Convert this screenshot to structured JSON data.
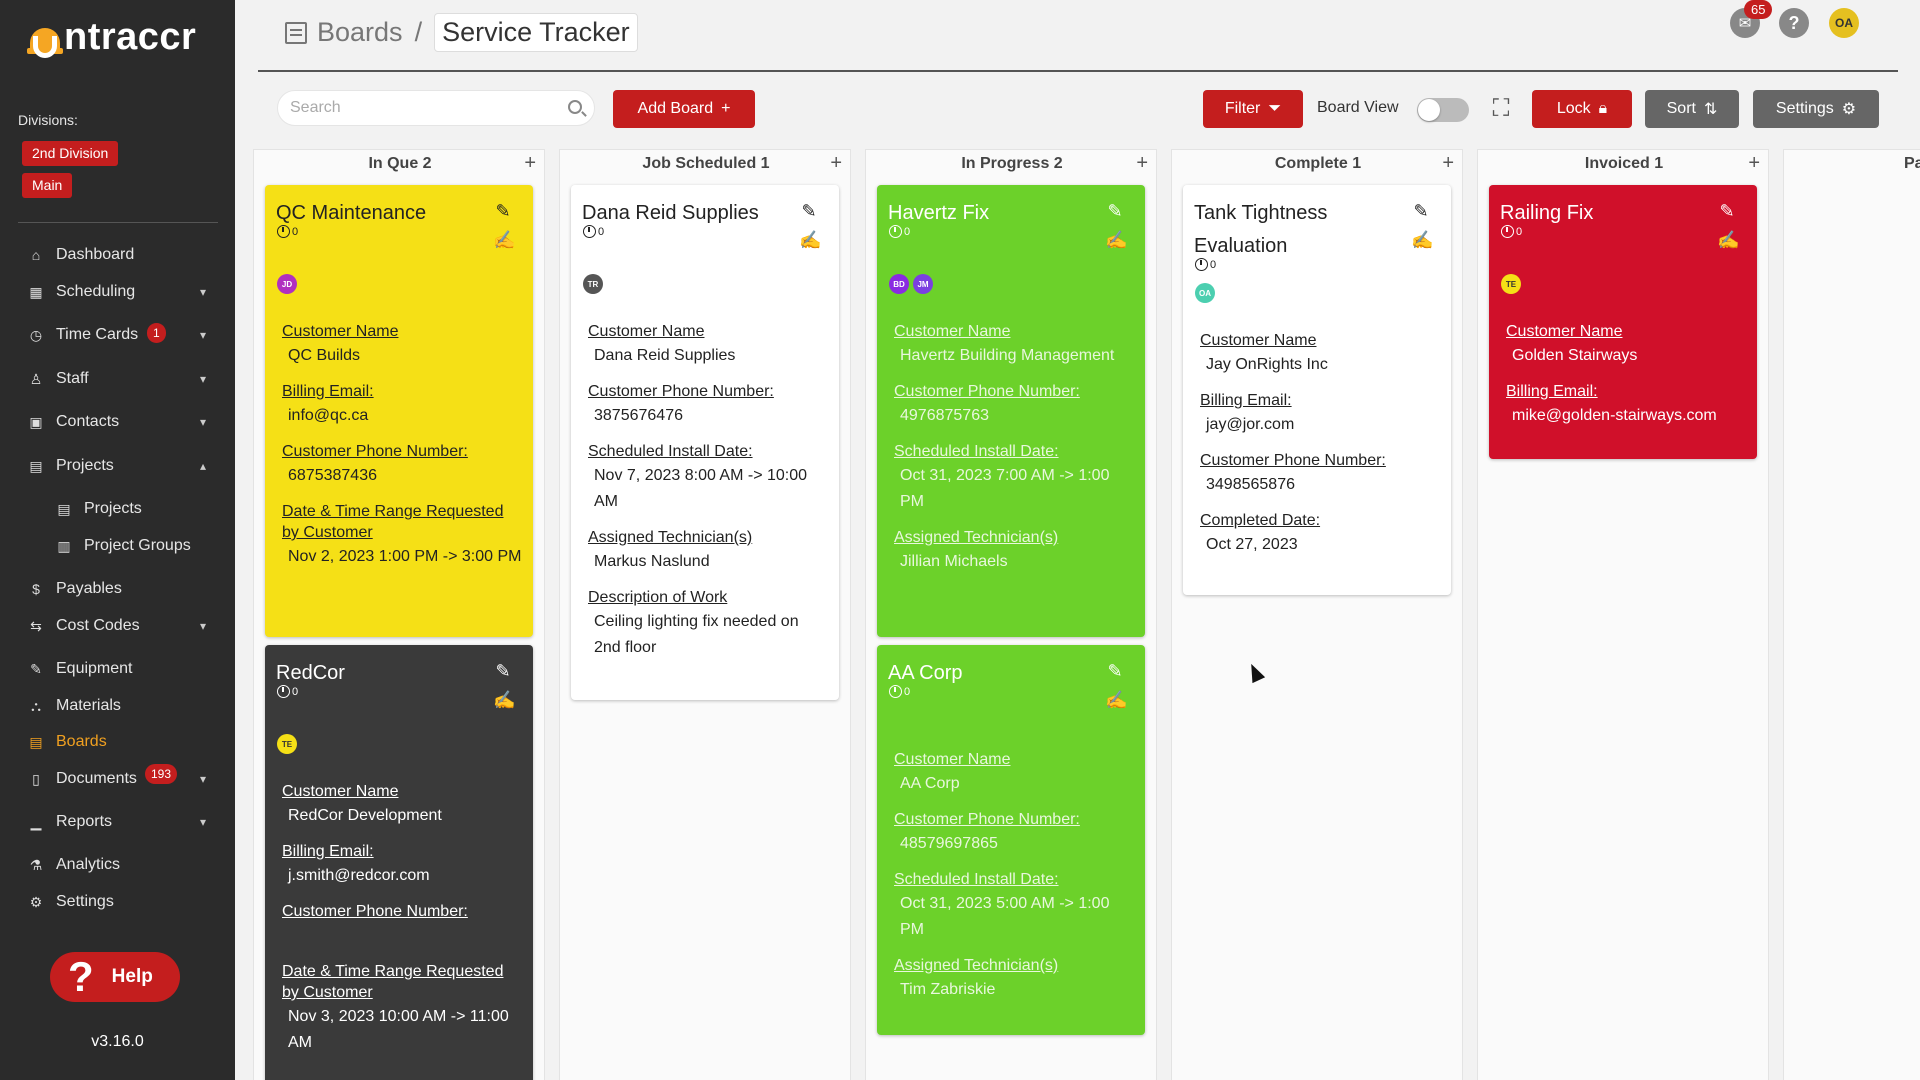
{
  "app": {
    "name": "Untraccr",
    "version": "v3.16.0"
  },
  "sidebar": {
    "divisions_label": "Divisions:",
    "divisions": [
      "2nd Division",
      "Main"
    ],
    "items": [
      {
        "label": "Dashboard",
        "icon": "home-icon"
      },
      {
        "label": "Scheduling",
        "icon": "calendar-icon"
      },
      {
        "label": "Time Cards",
        "icon": "clock-icon",
        "badge": "1"
      },
      {
        "label": "Staff",
        "icon": "user-icon"
      },
      {
        "label": "Contacts",
        "icon": "contact-card-icon"
      },
      {
        "label": "Projects",
        "icon": "projects-icon"
      },
      {
        "label": "Projects",
        "icon": "projects-icon"
      },
      {
        "label": "Project Groups",
        "icon": "project-groups-icon"
      },
      {
        "label": "Payables",
        "icon": "dollar-icon"
      },
      {
        "label": "Cost Codes",
        "icon": "swap-icon"
      },
      {
        "label": "Equipment",
        "icon": "wrench-icon"
      },
      {
        "label": "Materials",
        "icon": "materials-icon"
      },
      {
        "label": "Boards",
        "icon": "boards-icon"
      },
      {
        "label": "Documents",
        "icon": "document-icon",
        "badge": "193"
      },
      {
        "label": "Reports",
        "icon": "bar-chart-icon"
      },
      {
        "label": "Analytics",
        "icon": "flask-icon"
      },
      {
        "label": "Settings",
        "icon": "gear-icon"
      }
    ],
    "help_label": "Help"
  },
  "header": {
    "breadcrumb_root": "Boards",
    "breadcrumb_sep": "/",
    "breadcrumb_current": "Service Tracker",
    "mail_badge": "65",
    "avatar_initials": "OA"
  },
  "toolbar": {
    "search_placeholder": "Search",
    "add_board_label": "Add Board",
    "filter_label": "Filter",
    "board_view_label": "Board View",
    "lock_label": "Lock",
    "sort_label": "Sort",
    "settings_label": "Settings"
  },
  "columns": [
    {
      "title": "In Que 2",
      "cards": [
        {
          "title": "QC Maintenance",
          "time": "0",
          "color": "#f5e016",
          "avatars": [
            "JD"
          ],
          "fields": [
            {
              "label": "Customer Name",
              "value": "QC Builds"
            },
            {
              "label": "Billing Email:",
              "value": "info@qc.ca"
            },
            {
              "label": "Customer Phone Number:",
              "value": "6875387436"
            },
            {
              "label": "Date & Time Range Requested by Customer",
              "value": "Nov 2, 2023 1:00 PM -> 3:00 PM"
            }
          ]
        },
        {
          "title": "RedCor",
          "time": "0",
          "color": "#3a3a3a",
          "avatars": [
            "TE"
          ],
          "fields": [
            {
              "label": "Customer Name",
              "value": "RedCor Development"
            },
            {
              "label": "Billing Email:",
              "value": "j.smith@redcor.com"
            },
            {
              "label": "Customer Phone Number:",
              "value": ""
            },
            {
              "label": "Date & Time Range Requested by Customer",
              "value": "Nov 3, 2023 10:00 AM -> 11:00 AM"
            }
          ]
        }
      ]
    },
    {
      "title": "Job Scheduled 1",
      "cards": [
        {
          "title": "Dana Reid Supplies",
          "time": "0",
          "color": "#ffffff",
          "avatars": [
            "TR"
          ],
          "fields": [
            {
              "label": "Customer Name",
              "value": "Dana Reid Supplies"
            },
            {
              "label": "Customer Phone Number:",
              "value": "3875676476"
            },
            {
              "label": "Scheduled Install Date:",
              "value": "Nov 7, 2023 8:00 AM -> 10:00 AM"
            },
            {
              "label": "Assigned Technician(s)",
              "value": "Markus Naslund"
            },
            {
              "label": "Description of Work",
              "value": "Ceiling lighting fix needed on 2nd floor"
            }
          ]
        }
      ]
    },
    {
      "title": "In Progress 2",
      "cards": [
        {
          "title": "Havertz Fix",
          "time": "0",
          "color": "#6cd12a",
          "avatars": [
            "BD",
            "JM"
          ],
          "fields": [
            {
              "label": "Customer Name",
              "value": "Havertz Building Management"
            },
            {
              "label": "Customer Phone Number:",
              "value": "4976875763"
            },
            {
              "label": "Scheduled Install Date:",
              "value": "Oct 31, 2023 7:00 AM -> 1:00 PM"
            },
            {
              "label": "Assigned Technician(s)",
              "value": "Jillian Michaels"
            }
          ]
        },
        {
          "title": "AA Corp",
          "time": "0",
          "color": "#6cd12a",
          "avatars": [],
          "fields": [
            {
              "label": "Customer Name",
              "value": "AA Corp"
            },
            {
              "label": "Customer Phone Number:",
              "value": "48579697865"
            },
            {
              "label": "Scheduled Install Date:",
              "value": "Oct 31, 2023 5:00 AM -> 1:00 PM"
            },
            {
              "label": "Assigned Technician(s)",
              "value": "Tim Zabriskie"
            }
          ]
        }
      ]
    },
    {
      "title": "Complete 1",
      "cards": [
        {
          "title": "Tank Tightness Evaluation",
          "time": "0",
          "color": "#ffffff",
          "avatars": [
            "OA"
          ],
          "fields": [
            {
              "label": "Customer Name",
              "value": "Jay OnRights Inc"
            },
            {
              "label": "Billing Email:",
              "value": "jay@jor.com"
            },
            {
              "label": "Customer Phone Number:",
              "value": "3498565876"
            },
            {
              "label": "Completed Date:",
              "value": "Oct 27, 2023"
            }
          ]
        }
      ]
    },
    {
      "title": "Invoiced 1",
      "cards": [
        {
          "title": "Railing Fix",
          "time": "0",
          "color": "#d0102a",
          "avatars": [
            "TE"
          ],
          "fields": [
            {
              "label": "Customer Name",
              "value": "Golden Stairways"
            },
            {
              "label": "Billing Email:",
              "value": "mike@golden-stairways.com"
            }
          ]
        }
      ]
    },
    {
      "title": "Pa",
      "cards": []
    }
  ]
}
